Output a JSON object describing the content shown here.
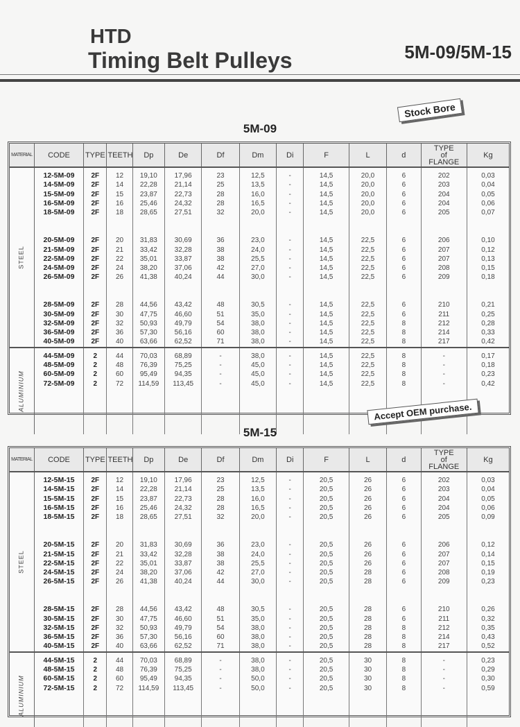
{
  "header": {
    "line1": "HTD",
    "line2": "Timing Belt Pulleys",
    "series": "5M-09/5M-15"
  },
  "badges": {
    "stock_bore": "Stock Bore",
    "oem": "Accept OEM purchase."
  },
  "columns": [
    "MATERIAL",
    "CODE",
    "TYPE",
    "TEETH",
    "Dp",
    "De",
    "Df",
    "Dm",
    "Di",
    "F",
    "L",
    "d",
    "TYPE of FLANGE",
    "Kg"
  ],
  "tables": [
    {
      "title": "5M-09",
      "groups": [
        {
          "material": "STEEL",
          "blocks": [
            [
              [
                "12-5M-09",
                "2F",
                "12",
                "19,10",
                "17,96",
                "23",
                "12,5",
                "-",
                "14,5",
                "20,0",
                "6",
                "202",
                "0,03"
              ],
              [
                "14-5M-09",
                "2F",
                "14",
                "22,28",
                "21,14",
                "25",
                "13,5",
                "-",
                "14,5",
                "20,0",
                "6",
                "203",
                "0,04"
              ],
              [
                "15-5M-09",
                "2F",
                "15",
                "23,87",
                "22,73",
                "28",
                "16,0",
                "-",
                "14,5",
                "20,0",
                "6",
                "204",
                "0,05"
              ],
              [
                "16-5M-09",
                "2F",
                "16",
                "25,46",
                "24,32",
                "28",
                "16,5",
                "-",
                "14,5",
                "20,0",
                "6",
                "204",
                "0,06"
              ],
              [
                "18-5M-09",
                "2F",
                "18",
                "28,65",
                "27,51",
                "32",
                "20,0",
                "-",
                "14,5",
                "20,0",
                "6",
                "205",
                "0,07"
              ]
            ],
            [
              [
                "20-5M-09",
                "2F",
                "20",
                "31,83",
                "30,69",
                "36",
                "23,0",
                "-",
                "14,5",
                "22,5",
                "6",
                "206",
                "0,10"
              ],
              [
                "21-5M-09",
                "2F",
                "21",
                "33,42",
                "32,28",
                "38",
                "24,0",
                "-",
                "14,5",
                "22,5",
                "6",
                "207",
                "0,12"
              ],
              [
                "22-5M-09",
                "2F",
                "22",
                "35,01",
                "33,87",
                "38",
                "25,5",
                "-",
                "14,5",
                "22,5",
                "6",
                "207",
                "0,13"
              ],
              [
                "24-5M-09",
                "2F",
                "24",
                "38,20",
                "37,06",
                "42",
                "27,0",
                "-",
                "14,5",
                "22,5",
                "6",
                "208",
                "0,15"
              ],
              [
                "26-5M-09",
                "2F",
                "26",
                "41,38",
                "40,24",
                "44",
                "30,0",
                "-",
                "14,5",
                "22,5",
                "6",
                "209",
                "0,18"
              ]
            ],
            [
              [
                "28-5M-09",
                "2F",
                "28",
                "44,56",
                "43,42",
                "48",
                "30,5",
                "-",
                "14,5",
                "22,5",
                "6",
                "210",
                "0,21"
              ],
              [
                "30-5M-09",
                "2F",
                "30",
                "47,75",
                "46,60",
                "51",
                "35,0",
                "-",
                "14,5",
                "22,5",
                "6",
                "211",
                "0,25"
              ],
              [
                "32-5M-09",
                "2F",
                "32",
                "50,93",
                "49,79",
                "54",
                "38,0",
                "-",
                "14,5",
                "22,5",
                "8",
                "212",
                "0,28"
              ],
              [
                "36-5M-09",
                "2F",
                "36",
                "57,30",
                "56,16",
                "60",
                "38,0",
                "-",
                "14,5",
                "22,5",
                "8",
                "214",
                "0,33"
              ],
              [
                "40-5M-09",
                "2F",
                "40",
                "63,66",
                "62,52",
                "71",
                "38,0",
                "-",
                "14,5",
                "22,5",
                "8",
                "217",
                "0,42"
              ]
            ]
          ]
        },
        {
          "material": "ALUMINIUM",
          "blocks": [
            [
              [
                "44-5M-09",
                "2",
                "44",
                "70,03",
                "68,89",
                "-",
                "38,0",
                "-",
                "14,5",
                "22,5",
                "8",
                "-",
                "0,17"
              ],
              [
                "48-5M-09",
                "2",
                "48",
                "76,39",
                "75,25",
                "-",
                "45,0",
                "-",
                "14,5",
                "22,5",
                "8",
                "-",
                "0,18"
              ],
              [
                "60-5M-09",
                "2",
                "60",
                "95,49",
                "94,35",
                "-",
                "45,0",
                "-",
                "14,5",
                "22,5",
                "8",
                "-",
                "0,23"
              ],
              [
                "72-5M-09",
                "2",
                "72",
                "114,59",
                "113,45",
                "-",
                "45,0",
                "-",
                "14,5",
                "22,5",
                "8",
                "-",
                "0,42"
              ]
            ]
          ]
        }
      ]
    },
    {
      "title": "5M-15",
      "groups": [
        {
          "material": "STEEL",
          "blocks": [
            [
              [
                "12-5M-15",
                "2F",
                "12",
                "19,10",
                "17,96",
                "23",
                "12,5",
                "-",
                "20,5",
                "26",
                "6",
                "202",
                "0,03"
              ],
              [
                "14-5M-15",
                "2F",
                "14",
                "22,28",
                "21,14",
                "25",
                "13,5",
                "-",
                "20,5",
                "26",
                "6",
                "203",
                "0,04"
              ],
              [
                "15-5M-15",
                "2F",
                "15",
                "23,87",
                "22,73",
                "28",
                "16,0",
                "-",
                "20,5",
                "26",
                "6",
                "204",
                "0,05"
              ],
              [
                "16-5M-15",
                "2F",
                "16",
                "25,46",
                "24,32",
                "28",
                "16,5",
                "-",
                "20,5",
                "26",
                "6",
                "204",
                "0,06"
              ],
              [
                "18-5M-15",
                "2F",
                "18",
                "28,65",
                "27,51",
                "32",
                "20,0",
                "-",
                "20,5",
                "26",
                "6",
                "205",
                "0,09"
              ]
            ],
            [
              [
                "20-5M-15",
                "2F",
                "20",
                "31,83",
                "30,69",
                "36",
                "23,0",
                "-",
                "20,5",
                "26",
                "6",
                "206",
                "0,12"
              ],
              [
                "21-5M-15",
                "2F",
                "21",
                "33,42",
                "32,28",
                "38",
                "24,0",
                "-",
                "20,5",
                "26",
                "6",
                "207",
                "0,14"
              ],
              [
                "22-5M-15",
                "2F",
                "22",
                "35,01",
                "33,87",
                "38",
                "25,5",
                "-",
                "20,5",
                "26",
                "6",
                "207",
                "0,15"
              ],
              [
                "24-5M-15",
                "2F",
                "24",
                "38,20",
                "37,06",
                "42",
                "27,0",
                "-",
                "20,5",
                "28",
                "6",
                "208",
                "0,19"
              ],
              [
                "26-5M-15",
                "2F",
                "26",
                "41,38",
                "40,24",
                "44",
                "30,0",
                "-",
                "20,5",
                "28",
                "6",
                "209",
                "0,23"
              ]
            ],
            [
              [
                "28-5M-15",
                "2F",
                "28",
                "44,56",
                "43,42",
                "48",
                "30,5",
                "-",
                "20,5",
                "28",
                "6",
                "210",
                "0,26"
              ],
              [
                "30-5M-15",
                "2F",
                "30",
                "47,75",
                "46,60",
                "51",
                "35,0",
                "-",
                "20,5",
                "28",
                "6",
                "211",
                "0,32"
              ],
              [
                "32-5M-15",
                "2F",
                "32",
                "50,93",
                "49,79",
                "54",
                "38,0",
                "-",
                "20,5",
                "28",
                "8",
                "212",
                "0,35"
              ],
              [
                "36-5M-15",
                "2F",
                "36",
                "57,30",
                "56,16",
                "60",
                "38,0",
                "-",
                "20,5",
                "28",
                "8",
                "214",
                "0,43"
              ],
              [
                "40-5M-15",
                "2F",
                "40",
                "63,66",
                "62,52",
                "71",
                "38,0",
                "-",
                "20,5",
                "28",
                "8",
                "217",
                "0,52"
              ]
            ]
          ]
        },
        {
          "material": "ALUMINIUM",
          "blocks": [
            [
              [
                "44-5M-15",
                "2",
                "44",
                "70,03",
                "68,89",
                "-",
                "38,0",
                "-",
                "20,5",
                "30",
                "8",
                "-",
                "0,23"
              ],
              [
                "48-5M-15",
                "2",
                "48",
                "76,39",
                "75,25",
                "-",
                "38,0",
                "-",
                "20,5",
                "30",
                "8",
                "-",
                "0,29"
              ],
              [
                "60-5M-15",
                "2",
                "60",
                "95,49",
                "94,35",
                "-",
                "50,0",
                "-",
                "20,5",
                "30",
                "8",
                "-",
                "0,30"
              ],
              [
                "72-5M-15",
                "2",
                "72",
                "114,59",
                "113,45",
                "-",
                "50,0",
                "-",
                "20,5",
                "30",
                "8",
                "-",
                "0,59"
              ]
            ]
          ]
        }
      ]
    }
  ]
}
